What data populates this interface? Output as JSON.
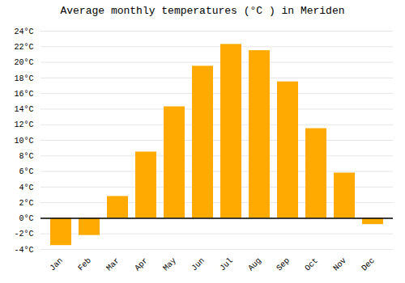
{
  "chart_data": {
    "type": "bar",
    "title": "Average monthly temperatures (°C ) in Meriden",
    "categories": [
      "Jan",
      "Feb",
      "Mar",
      "Apr",
      "May",
      "Jun",
      "Jul",
      "Aug",
      "Sep",
      "Oct",
      "Nov",
      "Dec"
    ],
    "values": [
      -3.5,
      -2.2,
      2.8,
      8.5,
      14.3,
      19.5,
      22.3,
      21.5,
      17.5,
      11.5,
      5.8,
      -0.8
    ],
    "color": "#FFAA00",
    "ylim": [
      -4,
      24
    ],
    "yticks": [
      {
        "value": -4,
        "label": "-4°C"
      },
      {
        "value": -2,
        "label": "-2°C"
      },
      {
        "value": 0,
        "label": "0°C"
      },
      {
        "value": 2,
        "label": "2°C"
      },
      {
        "value": 4,
        "label": "4°C"
      },
      {
        "value": 6,
        "label": "6°C"
      },
      {
        "value": 8,
        "label": "8°C"
      },
      {
        "value": 10,
        "label": "10°C"
      },
      {
        "value": 12,
        "label": "12°C"
      },
      {
        "value": 14,
        "label": "14°C"
      },
      {
        "value": 16,
        "label": "16°C"
      },
      {
        "value": 18,
        "label": "18°C"
      },
      {
        "value": 20,
        "label": "20°C"
      },
      {
        "value": 22,
        "label": "22°C"
      },
      {
        "value": 24,
        "label": "24°C"
      }
    ],
    "grid": true
  }
}
